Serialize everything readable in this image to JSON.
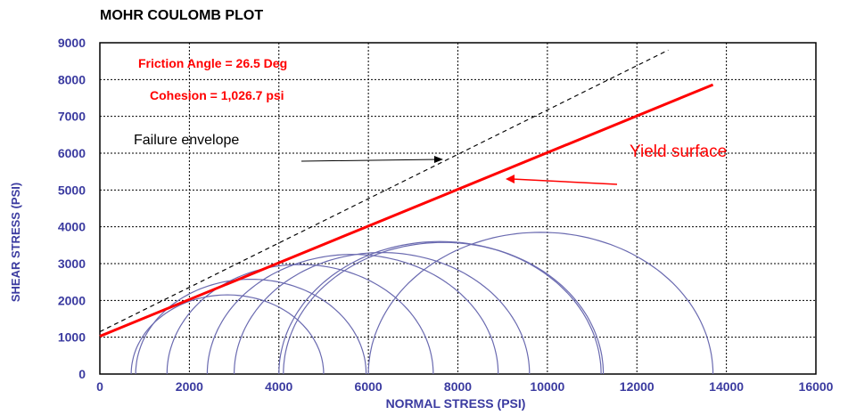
{
  "chart_data": {
    "type": "scatter",
    "title": "MOHR COULOMB PLOT",
    "xlabel": "NORMAL STRESS (PSI)",
    "ylabel": "SHEAR STRESS (PSI)",
    "xlim": [
      0,
      16000
    ],
    "ylim": [
      0,
      9000
    ],
    "x_ticks": [
      "0",
      "2000",
      "4000",
      "6000",
      "8000",
      "10000",
      "12000",
      "14000",
      "16000"
    ],
    "y_ticks": [
      "0",
      "1000",
      "2000",
      "3000",
      "4000",
      "5000",
      "6000",
      "7000",
      "8000",
      "9000"
    ],
    "grid": true,
    "annotations": {
      "friction_angle": "Friction Angle = 26.5 Deg",
      "cohesion": "Cohesion  = 1,026.7 psi",
      "failure_envelope": "Failure envelope",
      "yield_surface": "Yield surface"
    },
    "yield_surface_line": {
      "x": [
        0,
        13700
      ],
      "y": [
        1027,
        7860
      ],
      "color": "#ff0000"
    },
    "failure_envelope_line": {
      "x": [
        0,
        12700
      ],
      "y": [
        1150,
        8800
      ],
      "color": "#000000"
    },
    "mohr_circles": [
      {
        "sigma3": 700,
        "sigma1": 5000
      },
      {
        "sigma3": 800,
        "sigma1": 5950
      },
      {
        "sigma3": 1500,
        "sigma1": 7450
      },
      {
        "sigma3": 2400,
        "sigma1": 8900
      },
      {
        "sigma3": 3000,
        "sigma1": 9600
      },
      {
        "sigma3": 4000,
        "sigma1": 11200
      },
      {
        "sigma3": 4100,
        "sigma1": 11250
      },
      {
        "sigma3": 6000,
        "sigma1": 13700
      }
    ],
    "circle_color": "#6a6ab0"
  }
}
